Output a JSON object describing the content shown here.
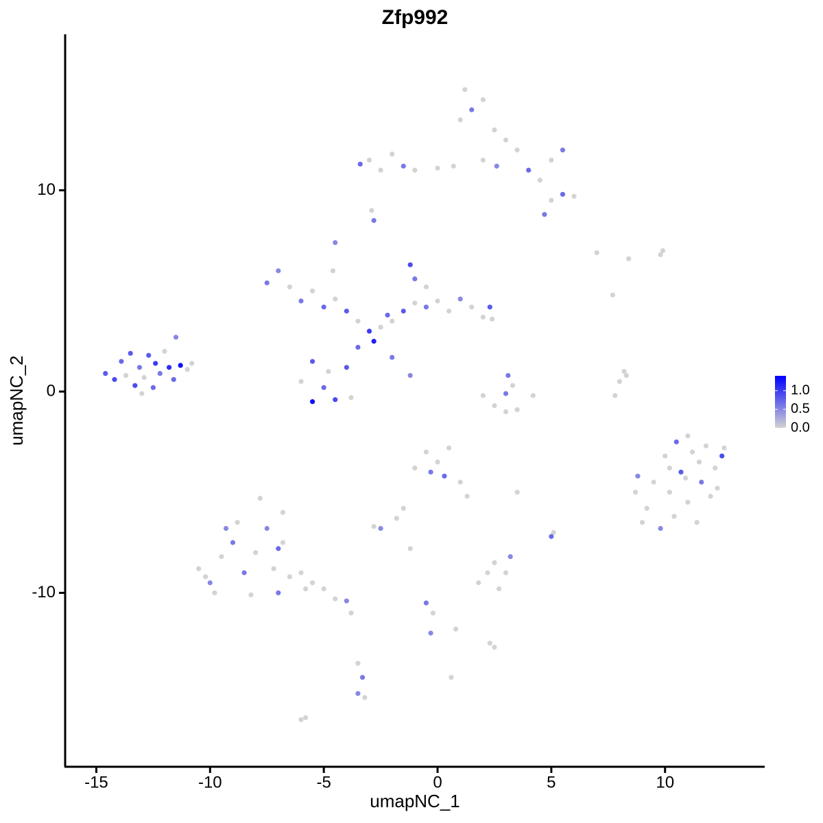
{
  "chart_data": {
    "type": "scatter",
    "title": "Zfp992",
    "x_label": "umapNC_1",
    "y_label": "umapNC_2",
    "xlim": [
      -16.37,
      14.38
    ],
    "ylim": [
      -18.64,
      17.75
    ],
    "xticks": [
      -15,
      -10,
      -5,
      0,
      5,
      10
    ],
    "yticks": [
      -10,
      0,
      10
    ],
    "color_low": "#d3d3d3",
    "color_high": "#0000ff",
    "colorbar_lim": [
      0,
      1.4
    ],
    "colorbar_ticks": [
      {
        "value": 0,
        "label": "0.0"
      },
      0.5,
      {
        "value": 1,
        "label": "1.0"
      }
    ],
    "x": [
      -14.6,
      -14.2,
      -13.9,
      -13.7,
      -13.5,
      -13.3,
      -13.1,
      -12.9,
      -12.7,
      -12.5,
      -12.4,
      -12.2,
      -12.0,
      -11.8,
      -11.6,
      -11.5,
      -11.3,
      -11.0,
      -10.8,
      -13.0,
      -7.5,
      -7.0,
      -6.5,
      -6.0,
      -5.5,
      -5.0,
      -4.5,
      -4.0,
      -3.5,
      -3.0,
      -2.8,
      -2.5,
      -2.2,
      -2.0,
      -1.5,
      -1.0,
      -0.5,
      0,
      0.5,
      1.0,
      1.5,
      2.0,
      2.3,
      2.4,
      -1.2,
      -1.0,
      -0.5,
      -4.5,
      -4.6,
      -2.0,
      -1.2,
      -5.5,
      -6.0,
      -5.0,
      -4.5,
      -5.5,
      -4.0,
      -3.5,
      -4.8,
      -3.8,
      -3.4,
      -3.0,
      -2.5,
      -2.0,
      -1.5,
      -1.0,
      0,
      0.7,
      1.0,
      1.2,
      1.5,
      2.0,
      2.5,
      3.0,
      2.0,
      2.6,
      3.5,
      4.0,
      4.5,
      5.0,
      5.5,
      5.0,
      5.5,
      4.7,
      6.0,
      -2.8,
      -2.9,
      2.0,
      2.5,
      3.0,
      3.5,
      4.2,
      3.1,
      3.3,
      3.0,
      8.8,
      9.2,
      9.5,
      9.8,
      10.0,
      10.2,
      10.4,
      10.5,
      10.7,
      11.0,
      11.2,
      11.4,
      11.6,
      11.8,
      12.0,
      12.2,
      12.5,
      12.3,
      11.0,
      9.0,
      8.7,
      11.5,
      10.9,
      12.6,
      10.2,
      -10.5,
      -10.0,
      -9.5,
      -9.0,
      -8.8,
      -8.5,
      -8.0,
      -7.8,
      -7.5,
      -7.2,
      -7.0,
      -6.8,
      -6.5,
      -6.0,
      -5.5,
      -5.0,
      -4.5,
      -4.0,
      -9.8,
      -8.2,
      -6.8,
      -7.0,
      -5.8,
      -10.2,
      -9.3,
      -1.0,
      -0.5,
      -0.3,
      0,
      0.3,
      0.5,
      1.0,
      1.3,
      -1.5,
      -1.8,
      -2.5,
      -2.8,
      1.8,
      2.2,
      2.5,
      2.7,
      3.0,
      3.2,
      5.0,
      5.1,
      -1.2,
      -0.5,
      -0.2,
      -0.3,
      0.8,
      2.3,
      2.5,
      0.6,
      -3.8,
      3.5,
      -3.5,
      -3.3,
      -3.5,
      -3.2,
      -6.0,
      -5.8,
      7.8,
      8.0,
      8.2,
      8.3,
      7.0,
      8.4,
      9.8,
      9.9,
      7.7
    ],
    "y": [
      0.9,
      0.6,
      1.5,
      0.8,
      1.9,
      0.3,
      1.2,
      0.7,
      1.8,
      0.2,
      1.4,
      0.9,
      2.0,
      1.2,
      0.6,
      2.7,
      1.3,
      1.1,
      1.4,
      -0.1,
      5.4,
      6.0,
      5.2,
      4.5,
      5.0,
      4.2,
      4.6,
      4.0,
      3.5,
      3.0,
      2.5,
      3.2,
      3.8,
      3.5,
      4.0,
      4.4,
      4.2,
      4.5,
      4.0,
      4.6,
      4.2,
      3.7,
      4.2,
      3.6,
      6.3,
      5.6,
      5.2,
      7.4,
      6.0,
      1.7,
      0.8,
      1.5,
      0.5,
      0.2,
      -0.4,
      -0.5,
      1.2,
      2.2,
      1.0,
      -0.3,
      11.3,
      11.5,
      11.0,
      11.8,
      11.2,
      11.0,
      11.1,
      11.2,
      13.5,
      15.0,
      14.0,
      14.5,
      13.0,
      12.5,
      11.5,
      11.2,
      12.0,
      11.0,
      10.5,
      11.5,
      12.0,
      9.5,
      9.8,
      8.8,
      9.7,
      8.5,
      9.0,
      -0.2,
      -0.7,
      -1.0,
      -0.9,
      -0.2,
      0.8,
      0.3,
      -0.1,
      -4.2,
      -5.8,
      -4.5,
      -6.8,
      -3.2,
      -5.0,
      -6.2,
      -2.5,
      -4.0,
      -5.5,
      -3.0,
      -6.5,
      -4.5,
      -2.7,
      -5.2,
      -3.8,
      -3.2,
      -4.8,
      -2.2,
      -6.5,
      -5.0,
      -3.5,
      -4.3,
      -2.8,
      -3.8,
      -8.8,
      -9.5,
      -8.2,
      -7.5,
      -6.5,
      -9.0,
      -8.0,
      -5.3,
      -6.8,
      -8.8,
      -10.0,
      -7.5,
      -9.2,
      -9.0,
      -9.5,
      -9.8,
      -10.3,
      -10.4,
      -10.0,
      -10.1,
      -6.0,
      -7.8,
      -9.8,
      -9.2,
      -6.8,
      -3.8,
      -3.0,
      -4.0,
      -3.5,
      -4.2,
      -2.8,
      -4.5,
      -5.2,
      -5.8,
      -6.3,
      -6.8,
      -6.7,
      -9.5,
      -9.0,
      -8.5,
      -9.8,
      -9.0,
      -8.2,
      -7.2,
      -7.0,
      -7.8,
      -10.5,
      -11.0,
      -12.0,
      -11.8,
      -12.5,
      -12.7,
      -14.2,
      -11.0,
      -5.0,
      -13.5,
      -14.2,
      -15.0,
      -15.2,
      -16.3,
      -16.2,
      -0.2,
      0.5,
      1.0,
      0.8,
      6.9,
      6.6,
      6.8,
      7.0,
      4.8
    ],
    "values": [
      0.8,
      0.9,
      0.7,
      0,
      0.8,
      0.9,
      0.6,
      0,
      0.8,
      0.7,
      1.0,
      0.6,
      0,
      1.1,
      0.7,
      0.5,
      1.3,
      0,
      0,
      0,
      0.6,
      0.5,
      0,
      0.6,
      0,
      0.7,
      0,
      0.8,
      0,
      1.0,
      1.2,
      0,
      0.7,
      0,
      0.8,
      0,
      0.6,
      0,
      0,
      0.5,
      0,
      0,
      0.8,
      0,
      0.9,
      0.6,
      0,
      0.5,
      0,
      0.6,
      0.5,
      0.8,
      0,
      0.7,
      0.9,
      1.3,
      0.8,
      0.7,
      0,
      0,
      0.7,
      0,
      0,
      0,
      0.6,
      0,
      0,
      0,
      0,
      0,
      0.6,
      0,
      0,
      0,
      0,
      0.5,
      0,
      0.7,
      0,
      0,
      0.6,
      0,
      0.7,
      0.6,
      0,
      0.6,
      0,
      0,
      0,
      0,
      0,
      0,
      0.6,
      0,
      0.6,
      0.5,
      0,
      0,
      0.5,
      0,
      0,
      0,
      0.7,
      0.8,
      0,
      0,
      0,
      0.6,
      0,
      0,
      0,
      0.9,
      0,
      0,
      0,
      0,
      0,
      0,
      0,
      0,
      0,
      0.5,
      0,
      0.6,
      0,
      0.6,
      0,
      0,
      0.5,
      0,
      0.6,
      0,
      0,
      0,
      0,
      0,
      0,
      0.5,
      0,
      0,
      0,
      0.7,
      0,
      0,
      0.5,
      0,
      0,
      0.6,
      0,
      0.7,
      0,
      0,
      0,
      0,
      0,
      0.5,
      0,
      0,
      0,
      0,
      0,
      0,
      0.5,
      0.7,
      0,
      0,
      0.6,
      0,
      0.5,
      0,
      0,
      0,
      0,
      0,
      0,
      0,
      0.6,
      0.5,
      0,
      0,
      0,
      0,
      0,
      0,
      0,
      0,
      0,
      0,
      0,
      0
    ]
  }
}
